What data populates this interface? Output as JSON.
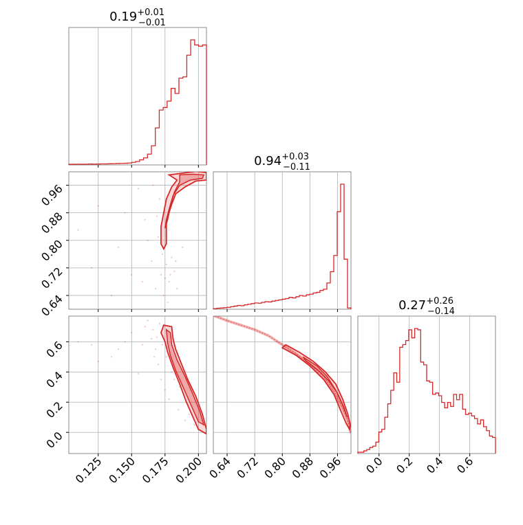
{
  "chart_data": {
    "type": "corner",
    "color": "#d62728",
    "parameters": [
      {
        "title_main": "0.19",
        "title_plus": "+0.01",
        "title_minus": "−0.01",
        "range": [
          0.103,
          0.206
        ],
        "ticks": [
          0.125,
          0.15,
          0.175,
          0.2
        ],
        "tick_labels": [
          "0.125",
          "0.150",
          "0.175",
          "0.200"
        ],
        "hist_x": [
          0.103,
          0.106,
          0.109,
          0.112,
          0.115,
          0.118,
          0.121,
          0.124,
          0.127,
          0.13,
          0.133,
          0.136,
          0.139,
          0.142,
          0.145,
          0.148,
          0.151,
          0.154,
          0.157,
          0.16,
          0.163,
          0.166,
          0.169,
          0.172,
          0.175,
          0.178,
          0.181,
          0.184,
          0.187,
          0.19,
          0.193,
          0.196,
          0.199,
          0.202,
          0.205
        ],
        "hist_y": [
          0.005,
          0.005,
          0.006,
          0.005,
          0.006,
          0.007,
          0.006,
          0.007,
          0.008,
          0.008,
          0.009,
          0.01,
          0.011,
          0.012,
          0.013,
          0.015,
          0.02,
          0.027,
          0.04,
          0.055,
          0.085,
          0.15,
          0.29,
          0.43,
          0.45,
          0.5,
          0.6,
          0.56,
          0.68,
          0.69,
          0.86,
          0.98,
          0.94,
          0.93,
          0.94
        ]
      },
      {
        "title_main": "0.94",
        "title_plus": "+0.03",
        "title_minus": "−0.11",
        "range": [
          0.6,
          0.999
        ],
        "ticks": [
          0.64,
          0.72,
          0.8,
          0.88,
          0.96
        ],
        "tick_labels": [
          "0.64",
          "0.72",
          "0.80",
          "0.88",
          "0.96"
        ],
        "hist_x": [
          0.6,
          0.61,
          0.62,
          0.63,
          0.64,
          0.65,
          0.66,
          0.67,
          0.68,
          0.69,
          0.7,
          0.71,
          0.72,
          0.73,
          0.74,
          0.75,
          0.76,
          0.77,
          0.78,
          0.79,
          0.8,
          0.81,
          0.82,
          0.83,
          0.84,
          0.85,
          0.86,
          0.87,
          0.88,
          0.89,
          0.9,
          0.91,
          0.92,
          0.93,
          0.94,
          0.95,
          0.96,
          0.97,
          0.98,
          0.99
        ],
        "hist_y": [
          0.005,
          0.008,
          0.01,
          0.012,
          0.015,
          0.02,
          0.025,
          0.03,
          0.028,
          0.035,
          0.04,
          0.045,
          0.05,
          0.048,
          0.055,
          0.06,
          0.058,
          0.065,
          0.07,
          0.075,
          0.08,
          0.085,
          0.095,
          0.09,
          0.1,
          0.11,
          0.105,
          0.115,
          0.12,
          0.13,
          0.135,
          0.15,
          0.16,
          0.21,
          0.3,
          0.43,
          0.78,
          1.0,
          0.4,
          0.01
        ]
      },
      {
        "title_main": "0.27",
        "title_plus": "+0.26",
        "title_minus": "−0.14",
        "range": [
          -0.14,
          0.77
        ],
        "ticks": [
          0.0,
          0.2,
          0.4,
          0.6
        ],
        "tick_labels": [
          "0.0",
          "0.2",
          "0.4",
          "0.6"
        ],
        "hist_x": [
          -0.14,
          -0.12,
          -0.1,
          -0.08,
          -0.06,
          -0.04,
          -0.02,
          0.0,
          0.02,
          0.04,
          0.06,
          0.08,
          0.1,
          0.12,
          0.14,
          0.16,
          0.18,
          0.2,
          0.22,
          0.24,
          0.26,
          0.28,
          0.3,
          0.32,
          0.34,
          0.36,
          0.38,
          0.4,
          0.42,
          0.44,
          0.46,
          0.48,
          0.5,
          0.52,
          0.54,
          0.56,
          0.58,
          0.6,
          0.62,
          0.64,
          0.66,
          0.68,
          0.7,
          0.72,
          0.74,
          0.76
        ],
        "hist_y": [
          0.01,
          0.01,
          0.02,
          0.03,
          0.045,
          0.055,
          0.085,
          0.16,
          0.18,
          0.27,
          0.37,
          0.47,
          0.6,
          0.53,
          0.79,
          0.81,
          0.84,
          0.92,
          0.86,
          0.93,
          0.92,
          0.68,
          0.66,
          0.54,
          0.53,
          0.44,
          0.45,
          0.43,
          0.38,
          0.34,
          0.38,
          0.35,
          0.44,
          0.4,
          0.44,
          0.33,
          0.29,
          0.3,
          0.28,
          0.26,
          0.22,
          0.25,
          0.2,
          0.17,
          0.13,
          0.12
        ]
      }
    ],
    "pairs": [
      {
        "x_param": 0,
        "y_param": 1,
        "contours": [
          {
            "level": "outer",
            "points": [
              [
                0.178,
                0.99
              ],
              [
                0.188,
                0.995
              ],
              [
                0.198,
                1.0
              ],
              [
                0.206,
                0.997
              ],
              [
                0.206,
                0.975
              ],
              [
                0.198,
                0.972
              ],
              [
                0.19,
                0.955
              ],
              [
                0.183,
                0.935
              ],
              [
                0.18,
                0.905
              ],
              [
                0.178,
                0.88
              ],
              [
                0.176,
                0.85
              ],
              [
                0.176,
                0.815
              ],
              [
                0.176,
                0.79
              ],
              [
                0.174,
                0.775
              ],
              [
                0.172,
                0.79
              ],
              [
                0.172,
                0.84
              ],
              [
                0.174,
                0.88
              ],
              [
                0.176,
                0.92
              ],
              [
                0.18,
                0.955
              ],
              [
                0.184,
                0.975
              ],
              [
                0.178,
                0.99
              ]
            ]
          },
          {
            "level": "inner",
            "points": [
              [
                0.186,
                0.99
              ],
              [
                0.196,
                0.992
              ],
              [
                0.204,
                0.99
              ],
              [
                0.203,
                0.98
              ],
              [
                0.194,
                0.975
              ],
              [
                0.186,
                0.96
              ],
              [
                0.181,
                0.93
              ],
              [
                0.178,
                0.89
              ],
              [
                0.176,
                0.86
              ],
              [
                0.175,
                0.835
              ],
              [
                0.177,
                0.86
              ],
              [
                0.179,
                0.9
              ],
              [
                0.182,
                0.94
              ],
              [
                0.186,
                0.97
              ],
              [
                0.186,
                0.99
              ]
            ]
          }
        ],
        "scatter": [
          [
            0.11,
            0.83
          ],
          [
            0.125,
            0.9
          ],
          [
            0.14,
            0.78
          ],
          [
            0.15,
            0.7
          ],
          [
            0.155,
            0.95
          ],
          [
            0.16,
            0.86
          ],
          [
            0.165,
            0.74
          ],
          [
            0.168,
            0.66
          ],
          [
            0.17,
            0.81
          ],
          [
            0.172,
            0.7
          ],
          [
            0.174,
            0.64
          ],
          [
            0.176,
            0.73
          ],
          [
            0.178,
            0.68
          ],
          [
            0.18,
            0.75
          ],
          [
            0.182,
            0.71
          ],
          [
            0.184,
            0.66
          ],
          [
            0.171,
            0.92
          ],
          [
            0.166,
            0.96
          ],
          [
            0.162,
            0.8
          ],
          [
            0.158,
            0.68
          ],
          [
            0.145,
            0.88
          ],
          [
            0.135,
            0.64
          ],
          [
            0.12,
            0.72
          ],
          [
            0.188,
            0.78
          ],
          [
            0.177,
            0.62
          ],
          [
            0.173,
            0.76
          ],
          [
            0.169,
            0.87
          ],
          [
            0.179,
            0.7
          ],
          [
            0.183,
            0.74
          ],
          [
            0.175,
            0.69
          ]
        ]
      },
      {
        "x_param": 0,
        "y_param": 2,
        "contours": [
          {
            "level": "outer",
            "points": [
              [
                0.174,
                0.71
              ],
              [
                0.18,
                0.7
              ],
              [
                0.181,
                0.62
              ],
              [
                0.183,
                0.55
              ],
              [
                0.187,
                0.46
              ],
              [
                0.192,
                0.35
              ],
              [
                0.198,
                0.24
              ],
              [
                0.203,
                0.12
              ],
              [
                0.206,
                0.02
              ],
              [
                0.206,
                -0.01
              ],
              [
                0.2,
                0.02
              ],
              [
                0.196,
                0.1
              ],
              [
                0.191,
                0.2
              ],
              [
                0.186,
                0.32
              ],
              [
                0.181,
                0.43
              ],
              [
                0.177,
                0.53
              ],
              [
                0.175,
                0.6
              ],
              [
                0.172,
                0.66
              ],
              [
                0.174,
                0.71
              ]
            ]
          },
          {
            "level": "inner",
            "points": [
              [
                0.176,
                0.68
              ],
              [
                0.179,
                0.66
              ],
              [
                0.18,
                0.58
              ],
              [
                0.184,
                0.48
              ],
              [
                0.19,
                0.37
              ],
              [
                0.196,
                0.25
              ],
              [
                0.201,
                0.14
              ],
              [
                0.204,
                0.05
              ],
              [
                0.2,
                0.07
              ],
              [
                0.195,
                0.17
              ],
              [
                0.189,
                0.29
              ],
              [
                0.183,
                0.41
              ],
              [
                0.179,
                0.51
              ],
              [
                0.177,
                0.59
              ],
              [
                0.176,
                0.68
              ]
            ]
          }
        ],
        "scatter": [
          [
            0.11,
            0.6
          ],
          [
            0.125,
            0.47
          ],
          [
            0.14,
            0.55
          ],
          [
            0.15,
            0.66
          ],
          [
            0.155,
            0.39
          ],
          [
            0.16,
            0.7
          ],
          [
            0.165,
            0.62
          ],
          [
            0.168,
            0.55
          ],
          [
            0.17,
            0.45
          ],
          [
            0.172,
            0.35
          ],
          [
            0.175,
            0.28
          ],
          [
            0.178,
            0.22
          ],
          [
            0.18,
            0.4
          ],
          [
            0.185,
            0.15
          ],
          [
            0.19,
            0.08
          ],
          [
            0.162,
            0.74
          ],
          [
            0.166,
            0.68
          ],
          [
            0.169,
            0.63
          ],
          [
            0.173,
            0.58
          ],
          [
            0.176,
            0.5
          ],
          [
            0.145,
            0.6
          ],
          [
            0.135,
            0.5
          ],
          [
            0.12,
            0.58
          ],
          [
            0.186,
            0.3
          ],
          [
            0.193,
            0.12
          ],
          [
            0.197,
            0.05
          ],
          [
            0.171,
            0.72
          ],
          [
            0.167,
            0.5
          ],
          [
            0.158,
            0.58
          ],
          [
            0.182,
            0.35
          ]
        ]
      },
      {
        "x_param": 1,
        "y_param": 2,
        "contours": [
          {
            "level": "outer",
            "points": [
              [
                0.8,
                0.56
              ],
              [
                0.84,
                0.51
              ],
              [
                0.88,
                0.44
              ],
              [
                0.92,
                0.35
              ],
              [
                0.95,
                0.25
              ],
              [
                0.97,
                0.14
              ],
              [
                0.985,
                0.06
              ],
              [
                0.995,
                0.02
              ],
              [
                0.997,
                0.05
              ],
              [
                0.99,
                0.12
              ],
              [
                0.975,
                0.22
              ],
              [
                0.955,
                0.32
              ],
              [
                0.925,
                0.4
              ],
              [
                0.89,
                0.47
              ],
              [
                0.85,
                0.53
              ],
              [
                0.81,
                0.58
              ],
              [
                0.8,
                0.56
              ]
            ]
          },
          {
            "level": "inner",
            "points": [
              [
                0.86,
                0.5
              ],
              [
                0.9,
                0.44
              ],
              [
                0.93,
                0.37
              ],
              [
                0.955,
                0.28
              ],
              [
                0.975,
                0.18
              ],
              [
                0.988,
                0.1
              ],
              [
                0.978,
                0.17
              ],
              [
                0.96,
                0.26
              ],
              [
                0.935,
                0.34
              ],
              [
                0.905,
                0.41
              ],
              [
                0.87,
                0.47
              ],
              [
                0.86,
                0.5
              ]
            ]
          }
        ],
        "band_curve": [
          [
            0.605,
            0.77
          ],
          [
            0.64,
            0.74
          ],
          [
            0.68,
            0.71
          ],
          [
            0.72,
            0.68
          ],
          [
            0.76,
            0.64
          ],
          [
            0.8,
            0.58
          ],
          [
            0.84,
            0.52
          ],
          [
            0.88,
            0.45
          ],
          [
            0.92,
            0.37
          ],
          [
            0.95,
            0.27
          ],
          [
            0.975,
            0.16
          ],
          [
            0.99,
            0.08
          ],
          [
            0.998,
            0.0
          ]
        ],
        "scatter": []
      }
    ]
  }
}
